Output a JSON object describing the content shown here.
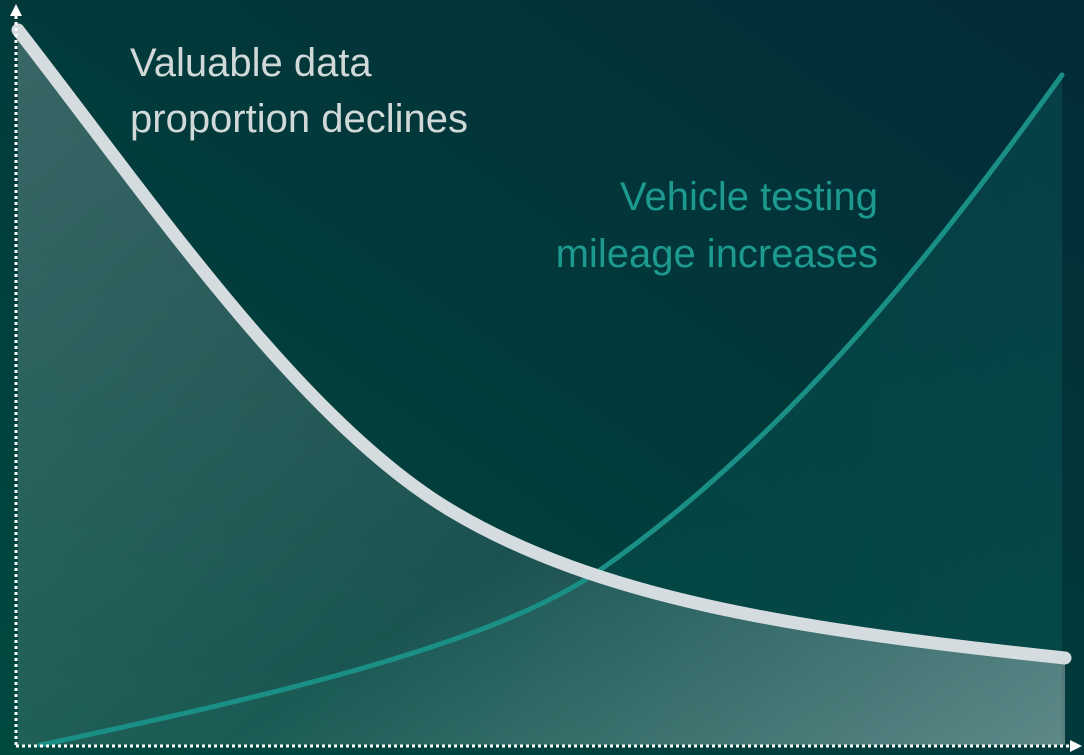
{
  "declining_label": {
    "lines": [
      "Valuable data",
      "proportion declines"
    ]
  },
  "increasing_label": {
    "lines": [
      "Vehicle testing",
      "mileage increases"
    ]
  }
}
